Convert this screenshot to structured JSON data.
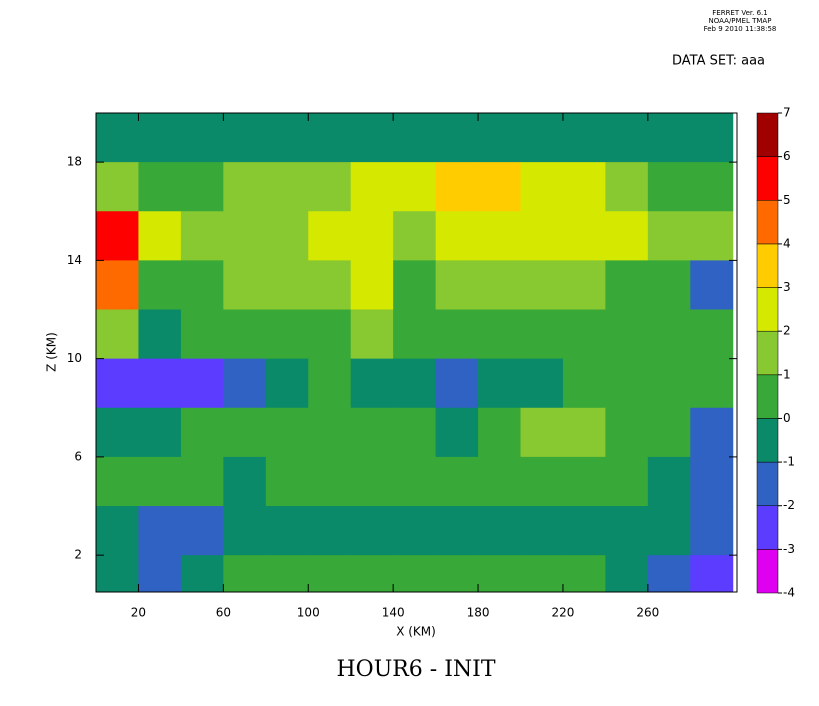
{
  "chart_data": {
    "type": "contour",
    "header": [
      "FERRET Ver. 6.1",
      "NOAA/PMEL TMAP",
      "Feb  9 2010 11:38:58"
    ],
    "subtitle": "DATA SET: aaa",
    "title": "HOUR6 - INIT",
    "x_label": "X (KM)",
    "y_label": "Z (KM)",
    "xlim": [
      0,
      302
    ],
    "ylim": [
      0.5,
      20
    ],
    "xticks": [
      20,
      60,
      100,
      140,
      180,
      220,
      260
    ],
    "yticks": [
      2,
      6,
      10,
      14,
      18
    ],
    "x": [
      10,
      30,
      50,
      70,
      90,
      110,
      130,
      150,
      170,
      190,
      210,
      230,
      250,
      270,
      290
    ],
    "y": [
      19,
      17,
      15,
      13,
      11,
      9,
      7,
      5,
      3,
      1
    ],
    "z": [
      [
        -0.5,
        -0.5,
        -0.5,
        -0.5,
        -0.5,
        -0.5,
        -0.5,
        -0.5,
        -0.5,
        -0.5,
        -0.5,
        -0.5,
        -0.5,
        -0.5,
        -0.5
      ],
      [
        1.5,
        0.5,
        0.5,
        1.5,
        1.5,
        1.5,
        2.5,
        2.5,
        3.5,
        3.5,
        2.5,
        2.5,
        1.5,
        0.5,
        0.5
      ],
      [
        5.5,
        2.5,
        1.5,
        1.5,
        1.5,
        2.5,
        2.5,
        1.5,
        2.5,
        2.5,
        2.5,
        2.5,
        2.5,
        1.5,
        1.5
      ],
      [
        4.5,
        0.5,
        0.5,
        1.5,
        1.5,
        1.5,
        2.5,
        0.5,
        1.5,
        1.5,
        1.5,
        1.5,
        0.5,
        0.5,
        -1.5
      ],
      [
        1.5,
        -0.5,
        0.5,
        0.5,
        0.5,
        0.5,
        1.5,
        0.5,
        0.5,
        0.5,
        0.5,
        0.5,
        0.5,
        0.5,
        0.5
      ],
      [
        -2.5,
        -2.5,
        -2.5,
        -1.5,
        -0.5,
        0.5,
        -0.5,
        -0.5,
        -1.5,
        -0.5,
        -0.5,
        0.5,
        0.5,
        0.5,
        0.5
      ],
      [
        -0.5,
        -0.5,
        0.5,
        0.5,
        0.5,
        0.5,
        0.5,
        0.5,
        -0.5,
        0.5,
        1.5,
        1.5,
        0.5,
        0.5,
        -1.5
      ],
      [
        0.5,
        0.5,
        0.5,
        -0.5,
        0.5,
        0.5,
        0.5,
        0.5,
        0.5,
        0.5,
        0.5,
        0.5,
        0.5,
        -0.5,
        -1.5
      ],
      [
        -0.5,
        -1.5,
        -1.5,
        -0.5,
        -0.5,
        -0.5,
        -0.5,
        -0.5,
        -0.5,
        -0.5,
        -0.5,
        -0.5,
        -0.5,
        -0.5,
        -1.5
      ],
      [
        -0.5,
        -1.5,
        -0.5,
        0.5,
        0.5,
        0.5,
        0.5,
        0.5,
        0.5,
        0.5,
        0.5,
        0.5,
        -0.5,
        -1.5,
        -2.5
      ]
    ],
    "levels": [
      -4,
      -3,
      -2,
      -1,
      0,
      1,
      2,
      3,
      4,
      5,
      6,
      7
    ],
    "colors": [
      "#e000f0",
      "#5c3cff",
      "#3062c4",
      "#0a8a68",
      "#38a838",
      "#88c830",
      "#d4e800",
      "#ffcc00",
      "#ff6a00",
      "#ff0000",
      "#a00000"
    ]
  }
}
